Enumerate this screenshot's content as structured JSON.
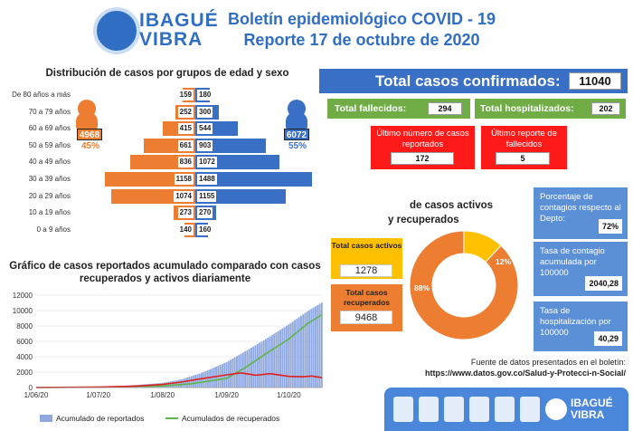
{
  "header": {
    "logo_top": "IBAGUÉ",
    "logo_bottom": "VIBRA",
    "title_line1": "Boletín epidemiológico COVID - 19",
    "title_line2": "Reporte 17 de octubre de 2020"
  },
  "pyramid": {
    "title": "Distribución de casos por grupos de edad y sexo",
    "female_total": "4968",
    "female_pct": "45%",
    "male_total": "6072",
    "male_pct": "55%",
    "rows": [
      {
        "age": "De 80 años a más",
        "female": 159,
        "male": 180
      },
      {
        "age": "70 a 79 años",
        "female": 252,
        "male": 300
      },
      {
        "age": "60 a 69 años",
        "female": 415,
        "male": 544
      },
      {
        "age": "50 a 59 años",
        "female": 661,
        "male": 903
      },
      {
        "age": "40 a 49 años",
        "female": 836,
        "male": 1072
      },
      {
        "age": "30 a 39 años",
        "female": 1158,
        "male": 1488
      },
      {
        "age": "20 a 29 años",
        "female": 1074,
        "male": 1155
      },
      {
        "age": "10 a 19 años",
        "female": 273,
        "male": 270
      },
      {
        "age": "0 a 9 años",
        "female": 140,
        "male": 160
      }
    ]
  },
  "kpis": {
    "confirmed_label": "Total casos confirmados:",
    "confirmed_value": "11040",
    "deaths_label": "Total fallecidos:",
    "deaths_value": "294",
    "hosp_label": "Total hospitalizados:",
    "hosp_value": "202",
    "last_cases_label": "Último número de casos reportados",
    "last_cases_value": "172",
    "last_deaths_label": "Último reporte de fallecidos",
    "last_deaths_value": "5"
  },
  "donut": {
    "title_line1": "de casos activos",
    "title_line2": "y recuperados",
    "active_label": "Total casos activos",
    "active_value": "1278",
    "recovered_label": "Total casos recuperados",
    "recovered_value": "9468",
    "active_pct_label": "12%",
    "recovered_pct_label": "88%",
    "active_pct": 12,
    "recovered_pct": 88,
    "colors": {
      "active": "#ffc000",
      "recovered": "#ed7d31"
    }
  },
  "stats": {
    "contagion_pct_label": "Porcentaje de contagios respecto al Depto:",
    "contagion_pct_value": "72%",
    "contagion_rate_label": "Tasa de contagio acumulada por 100000",
    "contagion_rate_value": "2040,28",
    "hosp_rate_label": "Tasa de hospitalización por 100000",
    "hosp_rate_value": "40,29"
  },
  "source": {
    "label": "Fuente de datos presentados en el boletín:",
    "url": "https://www.datos.gov.co/Salud-y-Protecci-n-Social/"
  },
  "footer": {
    "logo_top": "IBAGUÉ",
    "logo_bottom": "VIBRA"
  },
  "chart_data": {
    "type": "bar",
    "title": "Gráfico de casos reportados acumulado comparado con casos recuperados y activos diariamente",
    "xticks": [
      "1/06/20",
      "1/07/20",
      "1/08/20",
      "1/09/20",
      "1/10/20"
    ],
    "yticks": [
      0,
      2000,
      4000,
      6000,
      8000,
      10000,
      12000
    ],
    "ylim": [
      0,
      12000
    ],
    "x_range": [
      "2020-06-01",
      "2020-10-17"
    ],
    "legend": [
      "Acumulado de reportados",
      "Acumulados de recuperados"
    ],
    "series": [
      {
        "name": "Acumulado de reportados",
        "type": "bar",
        "color": "#8fa9e0",
        "points": [
          [
            "2020-06-01",
            20
          ],
          [
            "2020-06-15",
            50
          ],
          [
            "2020-07-01",
            110
          ],
          [
            "2020-07-15",
            250
          ],
          [
            "2020-08-01",
            600
          ],
          [
            "2020-08-10",
            1050
          ],
          [
            "2020-08-20",
            1900
          ],
          [
            "2020-09-01",
            3300
          ],
          [
            "2020-09-10",
            4700
          ],
          [
            "2020-09-20",
            6300
          ],
          [
            "2020-10-01",
            8200
          ],
          [
            "2020-10-10",
            9900
          ],
          [
            "2020-10-17",
            11040
          ]
        ]
      },
      {
        "name": "Acumulados de recuperados",
        "type": "line",
        "color": "#5fb548",
        "points": [
          [
            "2020-06-01",
            0
          ],
          [
            "2020-07-01",
            50
          ],
          [
            "2020-08-01",
            200
          ],
          [
            "2020-08-15",
            500
          ],
          [
            "2020-09-01",
            1200
          ],
          [
            "2020-09-10",
            2600
          ],
          [
            "2020-09-20",
            4400
          ],
          [
            "2020-10-01",
            6300
          ],
          [
            "2020-10-10",
            8300
          ],
          [
            "2020-10-17",
            9468
          ]
        ]
      },
      {
        "type": "line",
        "color": "#e02020",
        "points": [
          [
            "2020-06-01",
            10
          ],
          [
            "2020-07-01",
            60
          ],
          [
            "2020-07-20",
            200
          ],
          [
            "2020-08-01",
            400
          ],
          [
            "2020-08-10",
            700
          ],
          [
            "2020-08-20",
            1150
          ],
          [
            "2020-09-01",
            1650
          ],
          [
            "2020-09-08",
            1900
          ],
          [
            "2020-09-15",
            1600
          ],
          [
            "2020-09-22",
            1800
          ],
          [
            "2020-10-01",
            1450
          ],
          [
            "2020-10-08",
            1400
          ],
          [
            "2020-10-12",
            1500
          ],
          [
            "2020-10-17",
            1278
          ]
        ]
      }
    ]
  }
}
